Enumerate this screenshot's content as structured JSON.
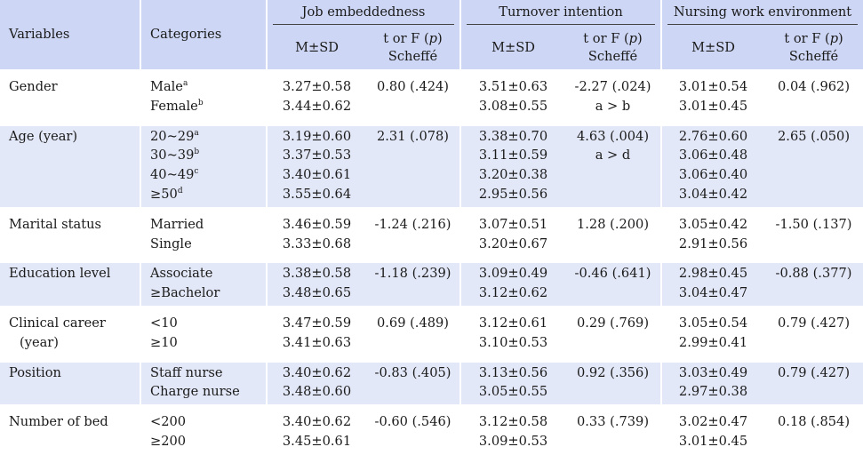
{
  "header": {
    "variables": "Variables",
    "categories": "Categories",
    "groups": [
      "Job embeddedness",
      "Turnover intention",
      "Nursing work environment"
    ],
    "msd": "M±SD",
    "test_line1_prefix": "t or F (",
    "test_line1_p": "p",
    "test_line1_suffix": ")",
    "test_line2": "Scheffé"
  },
  "rows": [
    {
      "variable": [
        "Gender"
      ],
      "categories": [
        [
          "Male",
          "a"
        ],
        [
          "Female",
          "b"
        ]
      ],
      "je_msd": [
        "3.27±0.58",
        "3.44±0.62"
      ],
      "je_test": [
        "0.80 (.424)"
      ],
      "ti_msd": [
        "3.51±0.63",
        "3.08±0.55"
      ],
      "ti_test": [
        "-2.27 (.024)",
        "a > b"
      ],
      "nw_msd": [
        "3.01±0.54",
        "3.01±0.45"
      ],
      "nw_test": [
        "0.04 (.962)"
      ]
    },
    {
      "variable": [
        "Age (year)"
      ],
      "categories": [
        [
          "20~29",
          "a"
        ],
        [
          "30~39",
          "b"
        ],
        [
          "40~49",
          "c"
        ],
        [
          "≥50",
          "d"
        ]
      ],
      "je_msd": [
        "3.19±0.60",
        "3.37±0.53",
        "3.40±0.61",
        "3.55±0.64"
      ],
      "je_test": [
        "2.31 (.078)"
      ],
      "ti_msd": [
        "3.38±0.70",
        "3.11±0.59",
        "3.20±0.38",
        "2.95±0.56"
      ],
      "ti_test": [
        "4.63 (.004)",
        "a > d"
      ],
      "nw_msd": [
        "2.76±0.60",
        "3.06±0.48",
        "3.06±0.40",
        "3.04±0.42"
      ],
      "nw_test": [
        "2.65 (.050)"
      ]
    },
    {
      "variable": [
        "Marital status"
      ],
      "categories": [
        [
          "Married",
          ""
        ],
        [
          "Single",
          ""
        ]
      ],
      "je_msd": [
        "3.46±0.59",
        "3.33±0.68"
      ],
      "je_test": [
        "-1.24 (.216)"
      ],
      "ti_msd": [
        "3.07±0.51",
        "3.20±0.67"
      ],
      "ti_test": [
        "1.28 (.200)"
      ],
      "nw_msd": [
        "3.05±0.42",
        "2.91±0.56"
      ],
      "nw_test": [
        "-1.50 (.137)"
      ]
    },
    {
      "variable": [
        "Education level"
      ],
      "categories": [
        [
          "Associate",
          ""
        ],
        [
          "≥Bachelor",
          ""
        ]
      ],
      "je_msd": [
        "3.38±0.58",
        "3.48±0.65"
      ],
      "je_test": [
        "-1.18 (.239)"
      ],
      "ti_msd": [
        "3.09±0.49",
        "3.12±0.62"
      ],
      "ti_test": [
        "-0.46 (.641)"
      ],
      "nw_msd": [
        "2.98±0.45",
        "3.04±0.47"
      ],
      "nw_test": [
        "-0.88 (.377)"
      ]
    },
    {
      "variable": [
        "Clinical career",
        "(year)"
      ],
      "categories": [
        [
          "<10",
          ""
        ],
        [
          "≥10",
          ""
        ]
      ],
      "je_msd": [
        "3.47±0.59",
        "3.41±0.63"
      ],
      "je_test": [
        "0.69 (.489)"
      ],
      "ti_msd": [
        "3.12±0.61",
        "3.10±0.53"
      ],
      "ti_test": [
        "0.29 (.769)"
      ],
      "nw_msd": [
        "3.05±0.54",
        "2.99±0.41"
      ],
      "nw_test": [
        "0.79 (.427)"
      ]
    },
    {
      "variable": [
        "Position"
      ],
      "categories": [
        [
          "Staff nurse",
          ""
        ],
        [
          "Charge nurse",
          ""
        ]
      ],
      "je_msd": [
        "3.40±0.62",
        "3.48±0.60"
      ],
      "je_test": [
        "-0.83 (.405)"
      ],
      "ti_msd": [
        "3.13±0.56",
        "3.05±0.55"
      ],
      "ti_test": [
        "0.92 (.356)"
      ],
      "nw_msd": [
        "3.03±0.49",
        "2.97±0.38"
      ],
      "nw_test": [
        "0.79 (.427)"
      ]
    },
    {
      "variable": [
        "Number of bed"
      ],
      "categories": [
        [
          "<200",
          ""
        ],
        [
          "≥200",
          ""
        ]
      ],
      "je_msd": [
        "3.40±0.62",
        "3.45±0.61"
      ],
      "je_test": [
        "-0.60 (.546)"
      ],
      "ti_msd": [
        "3.12±0.58",
        "3.09±0.53"
      ],
      "ti_test": [
        "0.33 (.739)"
      ],
      "nw_msd": [
        "3.02±0.47",
        "3.01±0.45"
      ],
      "nw_test": [
        "0.18 (.854)"
      ]
    }
  ]
}
